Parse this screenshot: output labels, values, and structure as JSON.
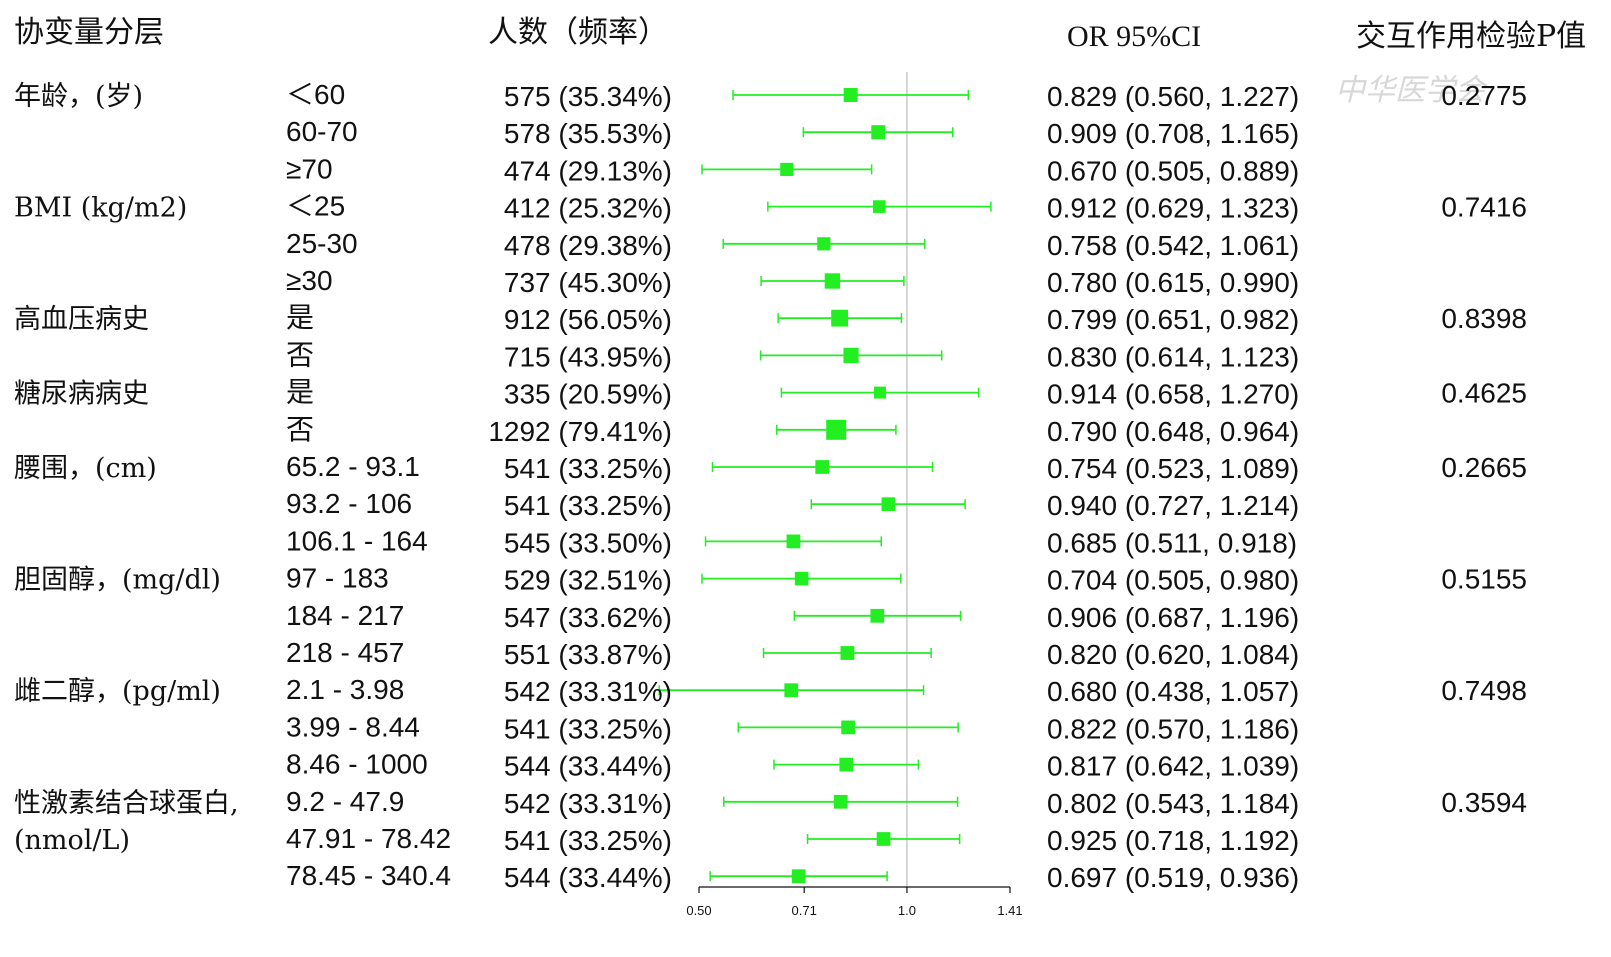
{
  "headers": {
    "covariate": "协变量分层",
    "count": "人数（频率）",
    "or": "OR 95%CI",
    "p": "交互作用检验P值"
  },
  "watermark": "中华医学会",
  "colors": {
    "marker": "#22ee22",
    "text": "#111111",
    "refline": "#bbbbbb",
    "axis": "#111111"
  },
  "chart_data": {
    "type": "forest",
    "title": "",
    "xlabel": "",
    "scale": "log",
    "xlim": [
      0.5,
      1.41
    ],
    "reference_line": 1.0,
    "x_ticks": [
      {
        "value": 0.5,
        "label": "0.50"
      },
      {
        "value": 0.71,
        "label": "0.71"
      },
      {
        "value": 1.0,
        "label": "1.0"
      },
      {
        "value": 1.41,
        "label": "1.41"
      }
    ],
    "groups": [
      {
        "label": "年龄，(岁)",
        "label2": "",
        "p": "0.2775",
        "rows": [
          {
            "subgroup": "＜60",
            "count": "575 (35.34%)",
            "or_text": "0.829 (0.560, 1.227)",
            "or": 0.829,
            "lo": 0.56,
            "hi": 1.227,
            "weight": 575
          },
          {
            "subgroup": "60-70",
            "count": "578 (35.53%)",
            "or_text": "0.909 (0.708, 1.165)",
            "or": 0.909,
            "lo": 0.708,
            "hi": 1.165,
            "weight": 578
          },
          {
            "subgroup": "≥70",
            "count": "474 (29.13%)",
            "or_text": "0.670 (0.505, 0.889)",
            "or": 0.67,
            "lo": 0.505,
            "hi": 0.889,
            "weight": 474
          }
        ]
      },
      {
        "label": "BMI (kg/m2)",
        "label2": "",
        "p": "0.7416",
        "rows": [
          {
            "subgroup": "＜25",
            "count": "412 (25.32%)",
            "or_text": "0.912 (0.629, 1.323)",
            "or": 0.912,
            "lo": 0.629,
            "hi": 1.323,
            "weight": 412
          },
          {
            "subgroup": "25-30",
            "count": "478 (29.38%)",
            "or_text": "0.758 (0.542, 1.061)",
            "or": 0.758,
            "lo": 0.542,
            "hi": 1.061,
            "weight": 478
          },
          {
            "subgroup": "≥30",
            "count": "737 (45.30%)",
            "or_text": "0.780 (0.615, 0.990)",
            "or": 0.78,
            "lo": 0.615,
            "hi": 0.99,
            "weight": 737
          }
        ]
      },
      {
        "label": "高血压病史",
        "label2": "",
        "p": "0.8398",
        "rows": [
          {
            "subgroup": "是",
            "count": "912 (56.05%)",
            "or_text": "0.799 (0.651, 0.982)",
            "or": 0.799,
            "lo": 0.651,
            "hi": 0.982,
            "weight": 912
          },
          {
            "subgroup": "否",
            "count": "715 (43.95%)",
            "or_text": "0.830 (0.614, 1.123)",
            "or": 0.83,
            "lo": 0.614,
            "hi": 1.123,
            "weight": 715
          }
        ]
      },
      {
        "label": "糖尿病病史",
        "label2": "",
        "p": "0.4625",
        "rows": [
          {
            "subgroup": "是",
            "count": "335 (20.59%)",
            "or_text": "0.914 (0.658, 1.270)",
            "or": 0.914,
            "lo": 0.658,
            "hi": 1.27,
            "weight": 335
          },
          {
            "subgroup": "否",
            "count": "1292 (79.41%)",
            "or_text": "0.790 (0.648, 0.964)",
            "or": 0.79,
            "lo": 0.648,
            "hi": 0.964,
            "weight": 1292
          }
        ]
      },
      {
        "label": "腰围，(cm)",
        "label2": "",
        "p": "0.2665",
        "rows": [
          {
            "subgroup": "65.2 - 93.1",
            "count": "541 (33.25%)",
            "or_text": "0.754 (0.523, 1.089)",
            "or": 0.754,
            "lo": 0.523,
            "hi": 1.089,
            "weight": 541
          },
          {
            "subgroup": "93.2 - 106",
            "count": "541 (33.25%)",
            "or_text": "0.940 (0.727, 1.214)",
            "or": 0.94,
            "lo": 0.727,
            "hi": 1.214,
            "weight": 541
          },
          {
            "subgroup": "106.1 - 164",
            "count": "545 (33.50%)",
            "or_text": "0.685 (0.511, 0.918)",
            "or": 0.685,
            "lo": 0.511,
            "hi": 0.918,
            "weight": 545
          }
        ]
      },
      {
        "label": "胆固醇，(mg/dl)",
        "label2": "",
        "p": "0.5155",
        "rows": [
          {
            "subgroup": "97 - 183",
            "count": "529 (32.51%)",
            "or_text": "0.704 (0.505, 0.980)",
            "or": 0.704,
            "lo": 0.505,
            "hi": 0.98,
            "weight": 529
          },
          {
            "subgroup": "184 - 217",
            "count": "547 (33.62%)",
            "or_text": "0.906 (0.687, 1.196)",
            "or": 0.906,
            "lo": 0.687,
            "hi": 1.196,
            "weight": 547
          },
          {
            "subgroup": "218 - 457",
            "count": "551 (33.87%)",
            "or_text": "0.820 (0.620, 1.084)",
            "or": 0.82,
            "lo": 0.62,
            "hi": 1.084,
            "weight": 551
          }
        ]
      },
      {
        "label": "雌二醇，(pg/ml)",
        "label2": "",
        "p": "0.7498",
        "rows": [
          {
            "subgroup": "2.1 - 3.98",
            "count": "542 (33.31%)",
            "or_text": "0.680 (0.438, 1.057)",
            "or": 0.68,
            "lo": 0.438,
            "hi": 1.057,
            "weight": 542
          },
          {
            "subgroup": "3.99 - 8.44",
            "count": "541 (33.25%)",
            "or_text": "0.822 (0.570, 1.186)",
            "or": 0.822,
            "lo": 0.57,
            "hi": 1.186,
            "weight": 541
          },
          {
            "subgroup": "8.46 - 1000",
            "count": "544 (33.44%)",
            "or_text": "0.817 (0.642, 1.039)",
            "or": 0.817,
            "lo": 0.642,
            "hi": 1.039,
            "weight": 544
          }
        ]
      },
      {
        "label": "性激素结合球蛋白,",
        "label2": "(nmol/L)",
        "p": "0.3594",
        "rows": [
          {
            "subgroup": "9.2 - 47.9",
            "count": "542 (33.31%)",
            "or_text": "0.802 (0.543, 1.184)",
            "or": 0.802,
            "lo": 0.543,
            "hi": 1.184,
            "weight": 542
          },
          {
            "subgroup": "47.91 - 78.42",
            "count": "541 (33.25%)",
            "or_text": "0.925 (0.718, 1.192)",
            "or": 0.925,
            "lo": 0.718,
            "hi": 1.192,
            "weight": 541
          },
          {
            "subgroup": "78.45 - 340.4",
            "count": "544 (33.44%)",
            "or_text": "0.697 (0.519, 0.936)",
            "or": 0.697,
            "lo": 0.519,
            "hi": 0.936,
            "weight": 544
          }
        ]
      }
    ]
  }
}
